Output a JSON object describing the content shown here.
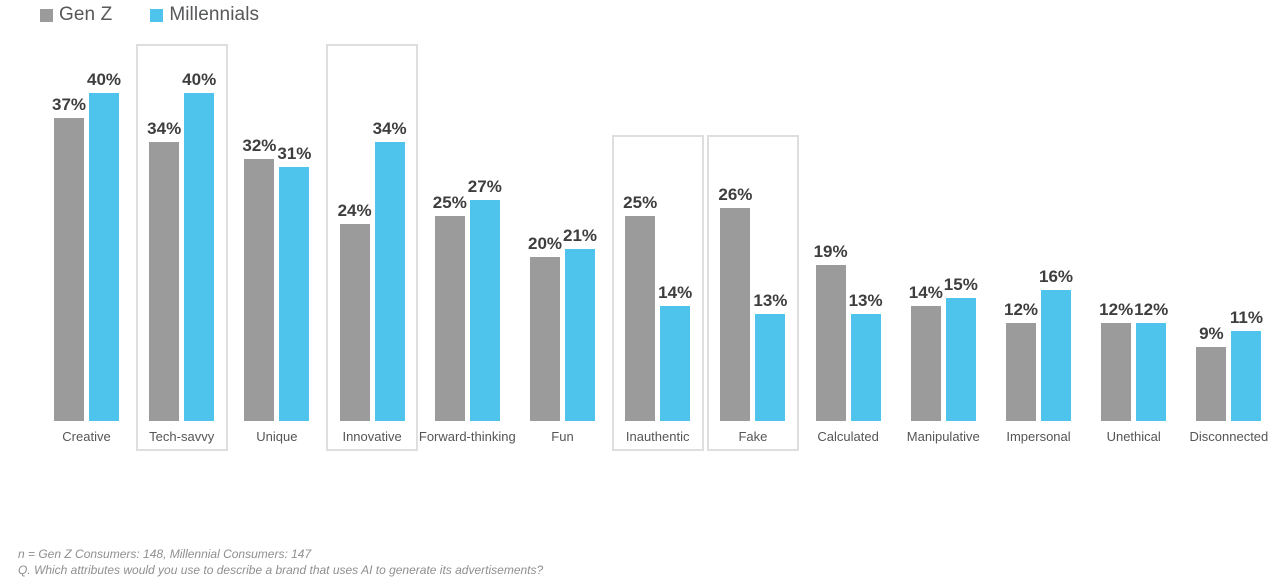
{
  "chart_data": {
    "type": "bar",
    "categories": [
      "Creative",
      "Tech-savvy",
      "Unique",
      "Innovative",
      "Forward-thinking",
      "Fun",
      "Inauthentic",
      "Fake",
      "Calculated",
      "Manipulative",
      "Impersonal",
      "Unethical",
      "Disconnected"
    ],
    "series": [
      {
        "name": "Gen Z",
        "color": "#9b9b9b",
        "values": [
          37,
          34,
          32,
          24,
          25,
          20,
          25,
          26,
          19,
          14,
          12,
          12,
          9
        ]
      },
      {
        "name": "Millennials",
        "color": "#4ec4ed",
        "values": [
          40,
          40,
          31,
          34,
          27,
          21,
          14,
          13,
          13,
          15,
          16,
          12,
          11
        ]
      }
    ],
    "value_suffix": "%",
    "ylim": [
      0,
      46
    ],
    "grid": false,
    "legend_position": "top-left",
    "highlight_boxes": [
      {
        "category": "Tech-savvy",
        "size": "tall"
      },
      {
        "category": "Innovative",
        "size": "tall"
      },
      {
        "category": "Inauthentic",
        "size": "short"
      },
      {
        "category": "Fake",
        "size": "short"
      }
    ],
    "highlight_box_border_color": "#dedede",
    "value_label_color": "#3e3e3e",
    "category_label_color": "#555555"
  },
  "footnotes": [
    "n = Gen Z Consumers: 148, Millennial Consumers: 147",
    "Q. Which attributes would you use to describe a brand that uses AI to generate its advertisements?"
  ]
}
